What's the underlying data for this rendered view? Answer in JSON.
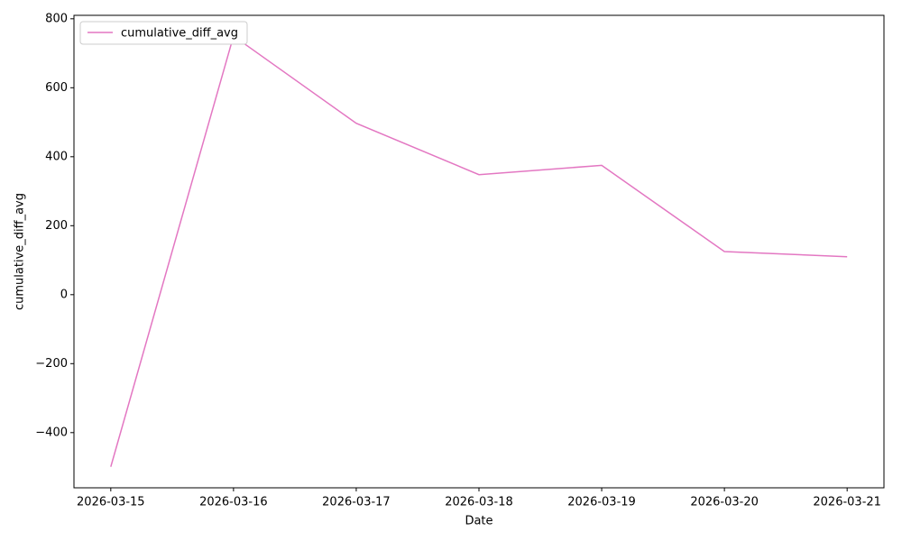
{
  "chart_data": {
    "type": "line",
    "x_label": "Date",
    "y_label": "cumulative_diff_avg",
    "categories": [
      "2026-03-15",
      "2026-03-16",
      "2026-03-17",
      "2026-03-18",
      "2026-03-19",
      "2026-03-20",
      "2026-03-21"
    ],
    "series": [
      {
        "name": "cumulative_diff_avg",
        "color": "#e377c2",
        "values": [
          -499,
          750,
          497,
          348,
          375,
          125,
          110
        ]
      }
    ],
    "ylim": [
      -560,
      810
    ],
    "yticks": [
      {
        "value": -400,
        "label": "−400"
      },
      {
        "value": -200,
        "label": "−200"
      },
      0,
      200,
      400,
      600,
      800
    ],
    "legend": "upper left"
  }
}
